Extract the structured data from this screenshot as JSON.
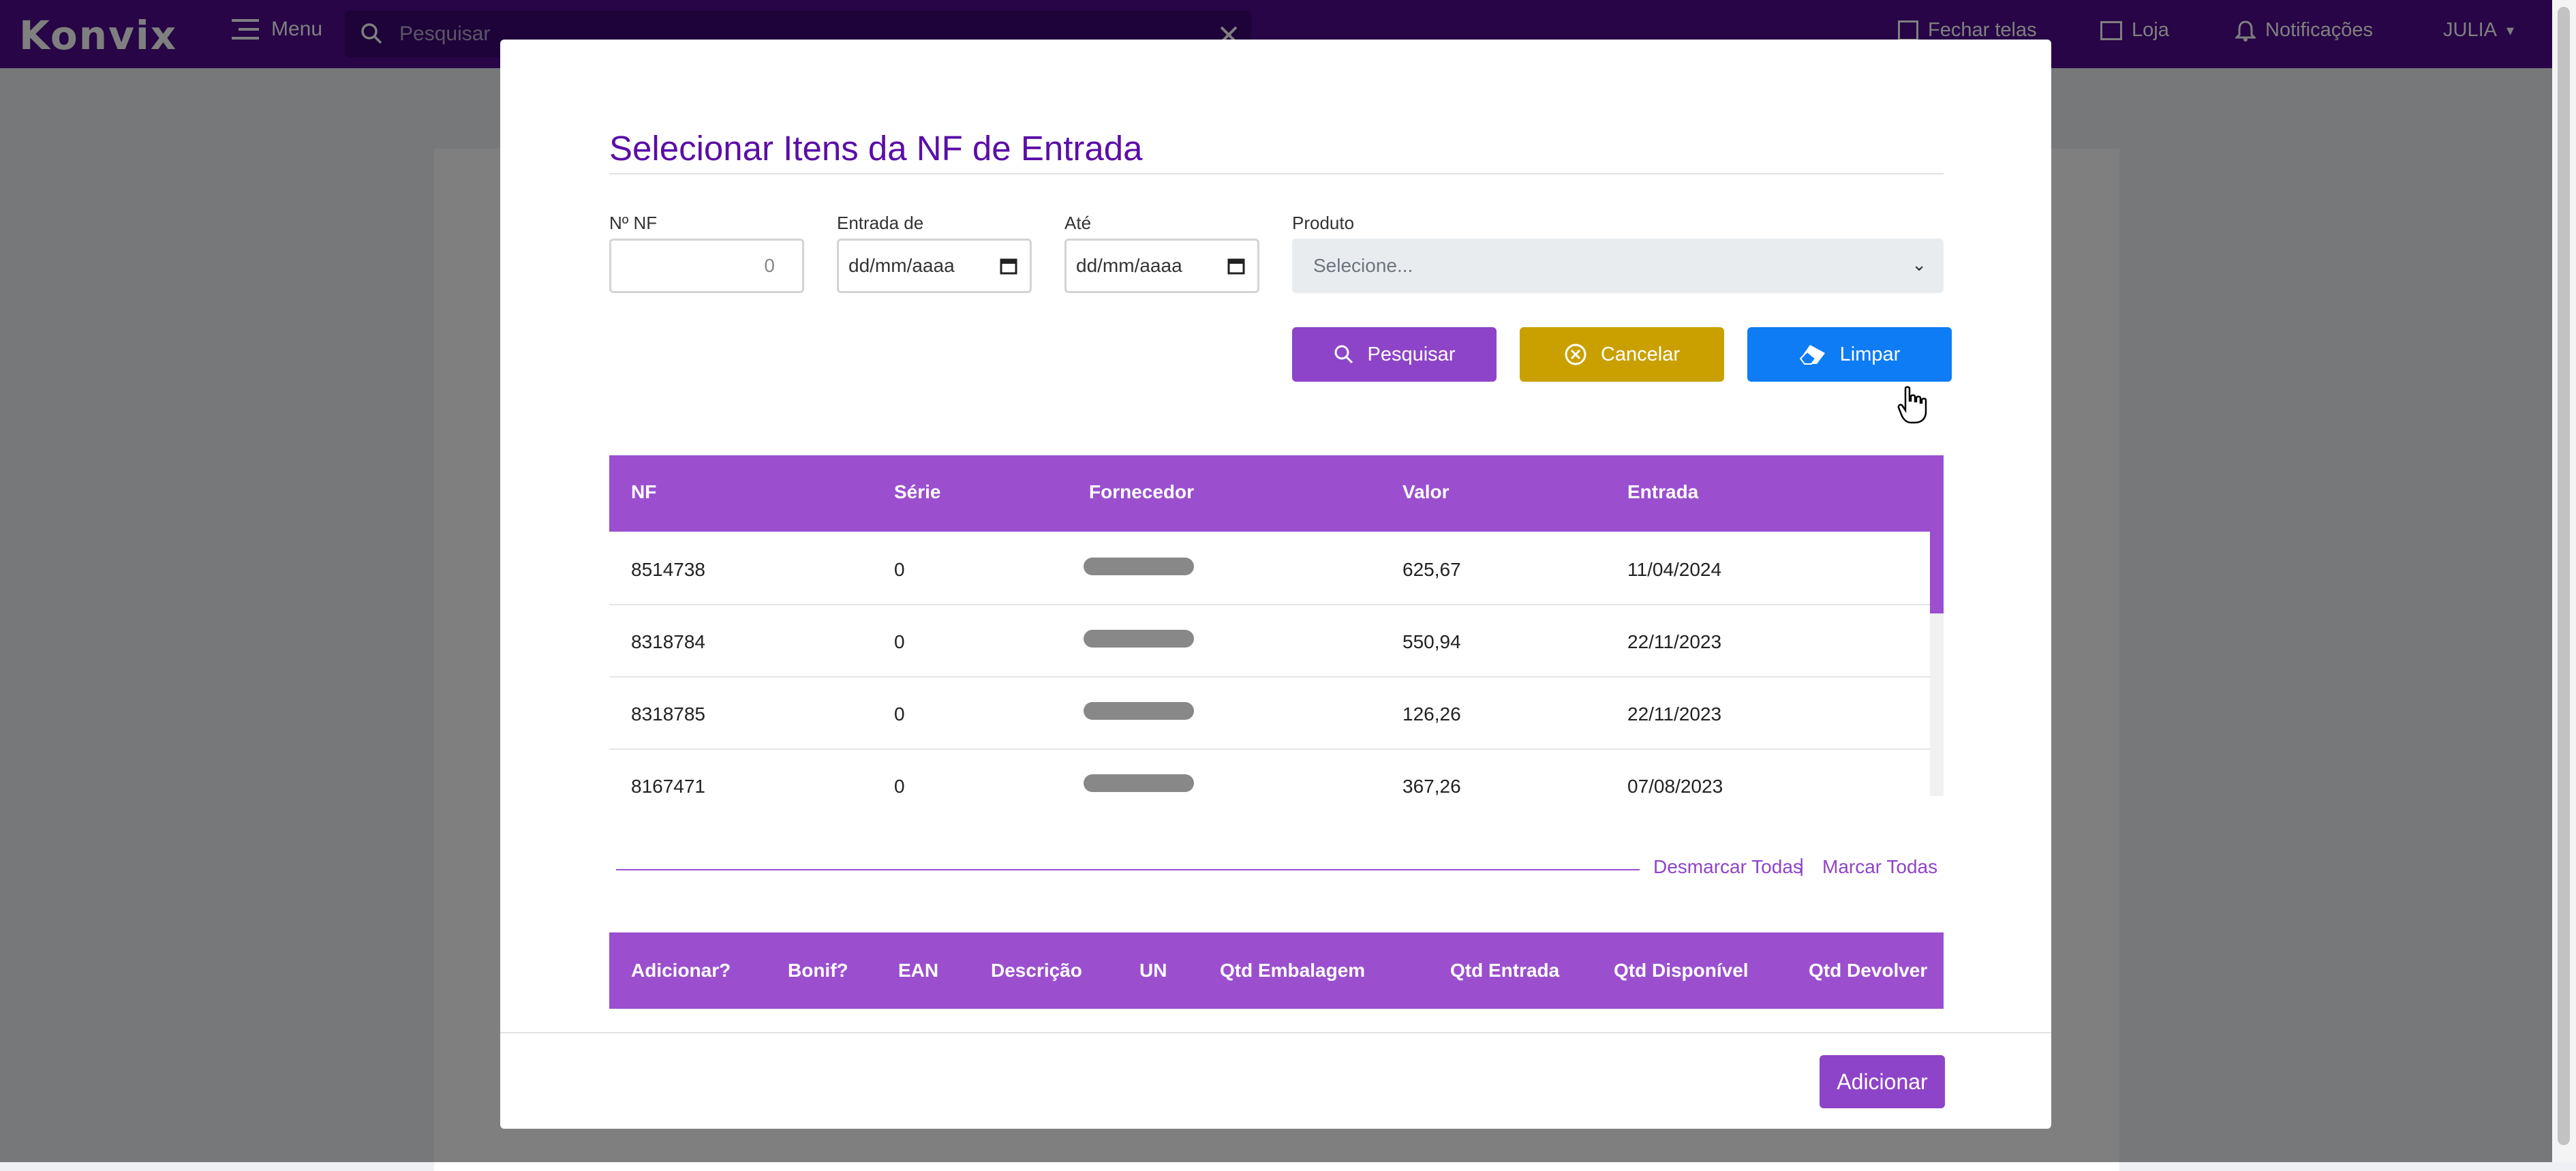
{
  "navbar": {
    "logo_text": "Konvix",
    "menu_label": "Menu",
    "search_placeholder": "Pesquisar",
    "fechar_telas": "Fechar telas",
    "loja": "Loja",
    "notificacoes": "Notificações",
    "user": "JULIA"
  },
  "modal": {
    "title": "Selecionar Itens da NF de Entrada",
    "filters": {
      "nf_label": "Nº NF",
      "nf_value": "0",
      "entrada_label": "Entrada de",
      "entrada_value": "dd/mm/aaaa",
      "ate_label": "Até",
      "ate_value": "dd/mm/aaaa",
      "produto_label": "Produto",
      "produto_value": "Selecione..."
    },
    "buttons": {
      "pesquisar": "Pesquisar",
      "cancelar": "Cancelar",
      "limpar": "Limpar",
      "adicionar": "Adicionar"
    },
    "nf_table": {
      "columns": [
        "NF",
        "Série",
        "Fornecedor",
        "Valor",
        "Entrada"
      ],
      "rows": [
        {
          "nf": "8514738",
          "serie": "0",
          "valor": "625,67",
          "entrada": "11/04/2024"
        },
        {
          "nf": "8318784",
          "serie": "0",
          "valor": "550,94",
          "entrada": "22/11/2023"
        },
        {
          "nf": "8318785",
          "serie": "0",
          "valor": "126,26",
          "entrada": "22/11/2023"
        },
        {
          "nf": "8167471",
          "serie": "0",
          "valor": "367,26",
          "entrada": "07/08/2023"
        }
      ]
    },
    "links": {
      "desmarcar": "Desmarcar Todas",
      "separator": "|",
      "marcar": "Marcar Todas"
    },
    "items_table": {
      "columns": [
        "Adicionar?",
        "Bonif?",
        "EAN",
        "Descrição",
        "UN",
        "Qtd Embalagem",
        "Qtd Entrada",
        "Qtd Disponível",
        "Qtd Devolver"
      ]
    }
  },
  "colors": {
    "navbar": "#4e0a8c",
    "accent": "#9b4fcf",
    "gold": "#c9a000",
    "blue": "#0d7cf5"
  }
}
